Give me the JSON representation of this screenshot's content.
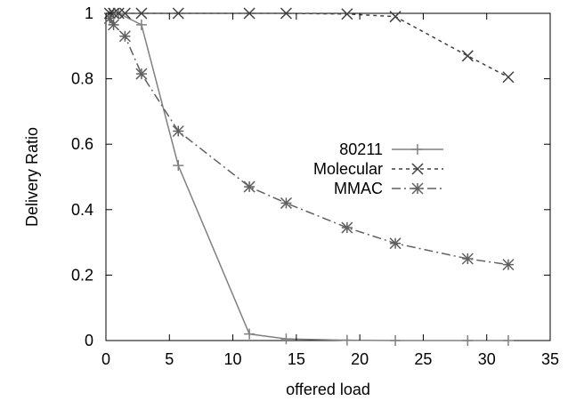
{
  "chart_data": {
    "type": "line",
    "title": "",
    "xlabel": "offered load",
    "ylabel": "Delivery Ratio",
    "xlim": [
      0,
      35
    ],
    "ylim": [
      0,
      1
    ],
    "x_ticks": [
      "0",
      "5",
      "10",
      "15",
      "20",
      "25",
      "30",
      "35"
    ],
    "y_ticks": [
      "0",
      "0.2",
      "0.4",
      "0.6",
      "0.8",
      "1"
    ],
    "grid": false,
    "legend_position": "center-right",
    "series": [
      {
        "name": "80211",
        "color": "#808080",
        "dash": "solid",
        "marker": "plus",
        "x": [
          0.3,
          0.6,
          1.0,
          2.8,
          5.7,
          11.3,
          14.2,
          19.0,
          22.8,
          28.5,
          31.7
        ],
        "y": [
          1.0,
          1.0,
          1.0,
          0.965,
          0.535,
          0.02,
          0.005,
          0.001,
          0.0,
          0.0,
          0.0
        ]
      },
      {
        "name": "Molecular",
        "color": "#404040",
        "dash": "dotted",
        "marker": "x",
        "x": [
          0.3,
          0.6,
          1.0,
          1.5,
          2.8,
          5.7,
          11.3,
          14.2,
          19.0,
          22.8,
          28.5,
          31.7
        ],
        "y": [
          1.0,
          1.0,
          1.0,
          1.0,
          1.0,
          1.0,
          1.0,
          1.0,
          0.998,
          0.99,
          0.87,
          0.805
        ]
      },
      {
        "name": "MMAC",
        "color": "#606060",
        "dash": "dashdot",
        "marker": "star",
        "x": [
          0.3,
          0.6,
          1.5,
          2.8,
          5.7,
          11.3,
          14.2,
          19.0,
          22.8,
          28.5,
          31.7
        ],
        "y": [
          0.985,
          0.965,
          0.93,
          0.815,
          0.64,
          0.47,
          0.42,
          0.345,
          0.297,
          0.25,
          0.232
        ]
      }
    ]
  }
}
